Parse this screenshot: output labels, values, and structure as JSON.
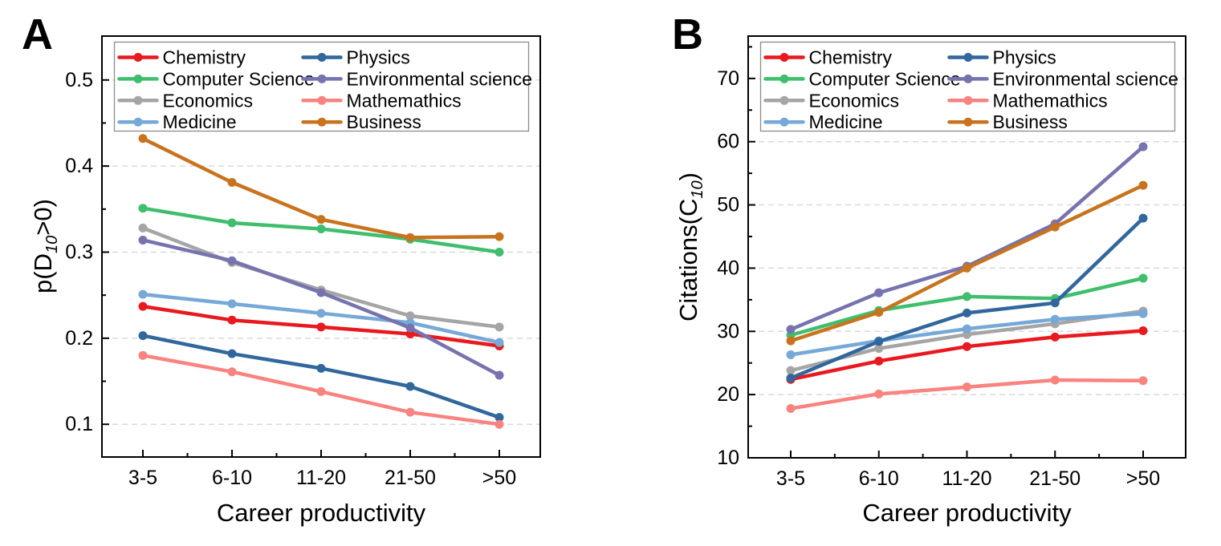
{
  "figure": {
    "background": "#ffffff",
    "text_color": "#000000",
    "grid_color": "#d9d9d9",
    "axis_color": "#000000",
    "legend_border_color": "#8c8c8c"
  },
  "chart_data": [
    {
      "type": "line",
      "panel_label": "A",
      "title": "",
      "xlabel": "Career productivity",
      "ylabel_pre": "p(D",
      "ylabel_sub": "10",
      "ylabel_post": ">0)",
      "categories": [
        "3-5",
        "6-10",
        "11-20",
        "21-50",
        ">50"
      ],
      "ylim": [
        0.062,
        0.551
      ],
      "yticks": [
        {
          "v": 0.1,
          "label": "0.1"
        },
        {
          "v": 0.2,
          "label": "0.2"
        },
        {
          "v": 0.3,
          "label": "0.3"
        },
        {
          "v": 0.4,
          "label": "0.4"
        },
        {
          "v": 0.5,
          "label": "0.5"
        }
      ],
      "yminor": [
        0.15,
        0.25,
        0.35,
        0.45
      ],
      "grid": true,
      "legend_position": "top-left",
      "legend_columns": 2,
      "series": [
        {
          "name": "Chemistry",
          "color": "#e8191f",
          "values": [
            0.237,
            0.221,
            0.213,
            0.205,
            0.191
          ]
        },
        {
          "name": "Computer Science",
          "color": "#3fbe6d",
          "values": [
            0.351,
            0.334,
            0.327,
            0.315,
            0.3
          ]
        },
        {
          "name": "Economics",
          "color": "#a5a5a5",
          "values": [
            0.328,
            0.288,
            0.256,
            0.226,
            0.213
          ]
        },
        {
          "name": "Medicine",
          "color": "#76a8d8",
          "values": [
            0.251,
            0.24,
            0.229,
            0.218,
            0.195
          ]
        },
        {
          "name": "Physics",
          "color": "#31679c",
          "values": [
            0.203,
            0.182,
            0.165,
            0.144,
            0.108
          ]
        },
        {
          "name": "Environmental science",
          "color": "#7673af",
          "values": [
            0.314,
            0.29,
            0.253,
            0.212,
            0.157
          ]
        },
        {
          "name": "Mathemathics",
          "color": "#f9837f",
          "values": [
            0.18,
            0.161,
            0.138,
            0.114,
            0.1
          ]
        },
        {
          "name": "Business",
          "color": "#c8741f",
          "values": [
            0.432,
            0.381,
            0.338,
            0.317,
            0.318
          ]
        }
      ]
    },
    {
      "type": "line",
      "panel_label": "B",
      "title": "",
      "xlabel": "Career productivity",
      "ylabel_pre": "Citations(C",
      "ylabel_sub": "10",
      "ylabel_post": ")",
      "categories": [
        "3-5",
        "6-10",
        "11-20",
        "21-50",
        ">50"
      ],
      "ylim": [
        10,
        76.7
      ],
      "yticks": [
        {
          "v": 10,
          "label": "10"
        },
        {
          "v": 20,
          "label": "20"
        },
        {
          "v": 30,
          "label": "30"
        },
        {
          "v": 40,
          "label": "40"
        },
        {
          "v": 50,
          "label": "50"
        },
        {
          "v": 60,
          "label": "60"
        },
        {
          "v": 70,
          "label": "70"
        }
      ],
      "yminor": [
        15,
        25,
        35,
        45,
        55,
        65,
        75
      ],
      "grid": true,
      "legend_position": "top-left",
      "legend_columns": 2,
      "series": [
        {
          "name": "Chemistry",
          "color": "#e8191f",
          "values": [
            22.4,
            25.3,
            27.6,
            29.1,
            30.1
          ]
        },
        {
          "name": "Computer Science",
          "color": "#3fbe6d",
          "values": [
            29.4,
            33.3,
            35.5,
            35.2,
            38.4
          ]
        },
        {
          "name": "Economics",
          "color": "#a5a5a5",
          "values": [
            23.8,
            27.3,
            29.5,
            31.2,
            33.2
          ]
        },
        {
          "name": "Medicine",
          "color": "#76a8d8",
          "values": [
            26.3,
            28.5,
            30.4,
            31.9,
            32.8
          ]
        },
        {
          "name": "Physics",
          "color": "#31679c",
          "values": [
            22.6,
            28.4,
            32.9,
            34.5,
            47.9
          ]
        },
        {
          "name": "Environmental science",
          "color": "#7673af",
          "values": [
            30.3,
            36.1,
            40.3,
            47.0,
            59.2
          ]
        },
        {
          "name": "Mathemathics",
          "color": "#f9837f",
          "values": [
            17.8,
            20.1,
            21.2,
            22.3,
            22.2
          ]
        },
        {
          "name": "Business",
          "color": "#c8741f",
          "values": [
            28.5,
            33.0,
            40.0,
            46.5,
            53.1
          ]
        }
      ]
    }
  ]
}
